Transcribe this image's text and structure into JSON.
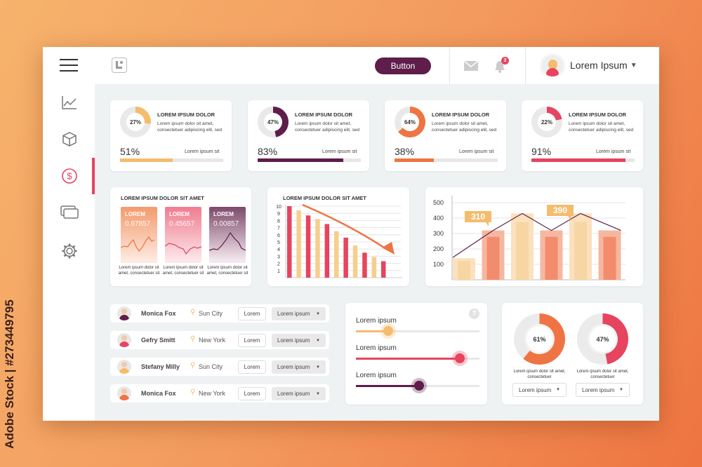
{
  "watermark": "Adobe Stock | #273449795",
  "header": {
    "button_label": "Button",
    "notification_count": "3",
    "user_name": "Lorem Ipsum"
  },
  "sidebar": {
    "items": [
      "chart",
      "box",
      "dollar",
      "cards",
      "settings"
    ],
    "active_index": 2
  },
  "stat_cards": [
    {
      "title": "LOREM IPSUM DOLOR",
      "desc": "Lorem ipsum dolor sit amet, consectetuer adipiscing elit, sed",
      "donut_label": "27%",
      "donut_value": 27,
      "big": "51%",
      "progress": 51,
      "caption": "Lorem ipsum sit",
      "color": "#f4bc6c"
    },
    {
      "title": "LOREM IPSUM DOLOR",
      "desc": "Lorem ipsum dolor sit amet, consectetuer adipiscing elit, sed",
      "donut_label": "47%",
      "donut_value": 47,
      "big": "83%",
      "progress": 83,
      "caption": "Lorem ipsum sit",
      "color": "#5e1d4a"
    },
    {
      "title": "LOREM IPSUM DOLOR",
      "desc": "Lorem ipsum dolor sit amet, consectetuer adipiscing elit, sed",
      "donut_label": "64%",
      "donut_value": 64,
      "big": "38%",
      "progress": 38,
      "caption": "Lorem ipsum sit",
      "color": "#ef7444"
    },
    {
      "title": "LOREM IPSUM DOLOR",
      "desc": "Lorem ipsum dolor sit amet, consectetuer adipiscing elit, sed",
      "donut_label": "22%",
      "donut_value": 22,
      "big": "91%",
      "progress": 91,
      "caption": "Lorem ipsum sit",
      "color": "#e6445f"
    }
  ],
  "tickers": {
    "title": "LOREM IPSUM DOLOR SIT AMET",
    "items": [
      {
        "label": "LOREM",
        "value": "0.67857",
        "caption": "Lorem ipsum dolor sit amet, consectetuer sit"
      },
      {
        "label": "LOREM",
        "value": "0.45657",
        "caption": "Lorem ipsum dolor sit amet, consectetuer sit"
      },
      {
        "label": "LOREM",
        "value": "0.00857",
        "caption": "Lorem ipsum dolor sit amet, consectetuer sit"
      }
    ]
  },
  "chart_data": [
    {
      "type": "bar",
      "title": "LOREM IPSUM DOLOR SIT AMET",
      "yticks": [
        "1",
        "2",
        "3",
        "4",
        "5",
        "6",
        "7",
        "8",
        "9",
        "10"
      ],
      "ylim": [
        0,
        10
      ],
      "values": [
        10,
        9.4,
        8.7,
        8.2,
        7.5,
        6.5,
        5.6,
        4.5,
        3.5,
        2.9,
        2.3
      ],
      "colors": [
        "#e6445f",
        "#f6cf8c"
      ],
      "annotation": "downward trend arrow"
    },
    {
      "type": "bar",
      "title": "",
      "yticks": [
        "100",
        "200",
        "300",
        "400",
        "500"
      ],
      "ylim": [
        0,
        520
      ],
      "bars": [
        140,
        320,
        430,
        320,
        430,
        320
      ],
      "line": [
        145,
        320,
        430,
        320,
        430,
        320
      ],
      "callouts": [
        "310",
        "390"
      ]
    }
  ],
  "people": [
    {
      "name": "Monica Fox",
      "city": "Sun City",
      "button": "Lorem",
      "select": "Lorem ipsum"
    },
    {
      "name": "Gefry Smitt",
      "city": "New York",
      "button": "Lorem",
      "select": "Lorem ipsum"
    },
    {
      "name": "Stefany Milly",
      "city": "Sun City",
      "button": "Lorem",
      "select": "Lorem ipsum"
    },
    {
      "name": "Monica Fox",
      "city": "New York",
      "button": "Lorem",
      "select": "Lorem ipsum"
    }
  ],
  "sliders": [
    {
      "label": "Lorem ipsum",
      "value": 26,
      "color": "#f4bc6c"
    },
    {
      "label": "Lorem ipsum",
      "value": 84,
      "color": "#e6445f"
    },
    {
      "label": "Lorem ipsum",
      "value": 51,
      "color": "#5e1d4a"
    }
  ],
  "help": "?",
  "big_donuts": [
    {
      "label": "61%",
      "value": 61,
      "color": "#ef7444",
      "caption": "Lorem ipsum dolor sit amet, consectetuer",
      "select": "Lorem ipsum"
    },
    {
      "label": "47%",
      "value": 47,
      "color": "#e6445f",
      "caption": "Lorem ipsum dolor sit amet, consectetuer",
      "select": "Lorem ipsum"
    }
  ]
}
